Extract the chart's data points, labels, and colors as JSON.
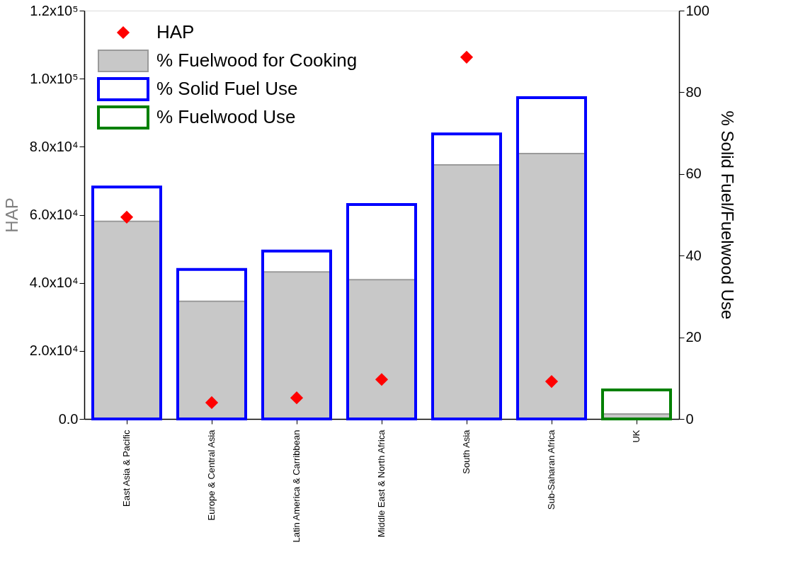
{
  "chart_data": {
    "type": "bar",
    "categories": [
      "East Asia & Pacific",
      "Europe & Central Asia",
      "Latin America & Carribbean",
      "Middle East & North Africa",
      "South Asia",
      "Sub-Saharan Africa",
      "UK"
    ],
    "ylabel": "HAP",
    "y2label": "% Solid Fuel/Fuelwood Use",
    "ylim": [
      0,
      120000
    ],
    "yticks": [
      {
        "value": 0,
        "label": "0.0"
      },
      {
        "value": 20000,
        "label": "2.0x10⁴"
      },
      {
        "value": 40000,
        "label": "4.0x10⁴"
      },
      {
        "value": 60000,
        "label": "6.0x10⁴"
      },
      {
        "value": 80000,
        "label": "8.0x10⁴"
      },
      {
        "value": 100000,
        "label": "1.0x10⁵"
      },
      {
        "value": 120000,
        "label": "1.2x10⁵"
      }
    ],
    "y2lim": [
      0,
      100
    ],
    "y2ticks": [
      0,
      20,
      40,
      60,
      80,
      100
    ],
    "series": [
      {
        "name": "% Fuelwood for Cooking",
        "axis": "y2",
        "color": "#c8c8c8",
        "values": [
          48.4,
          28.8,
          36.0,
          34.1,
          62.2,
          65.0,
          1.2
        ]
      },
      {
        "name": "% Solid Fuel Use",
        "axis": "y2",
        "color": "#0000ff",
        "values": [
          56.8,
          36.6,
          41.1,
          52.5,
          69.8,
          78.7,
          null
        ]
      },
      {
        "name": "% Fuelwood Use",
        "axis": "y2",
        "color": "#008000",
        "values": [
          null,
          null,
          null,
          null,
          null,
          null,
          7.1
        ]
      },
      {
        "name": "HAP",
        "type": "scatter",
        "color": "#ff0000",
        "values": [
          59300,
          4800,
          6200,
          11600,
          106300,
          11000,
          null
        ]
      }
    ],
    "marker": "diamond",
    "grid": false,
    "legend": "top left"
  }
}
